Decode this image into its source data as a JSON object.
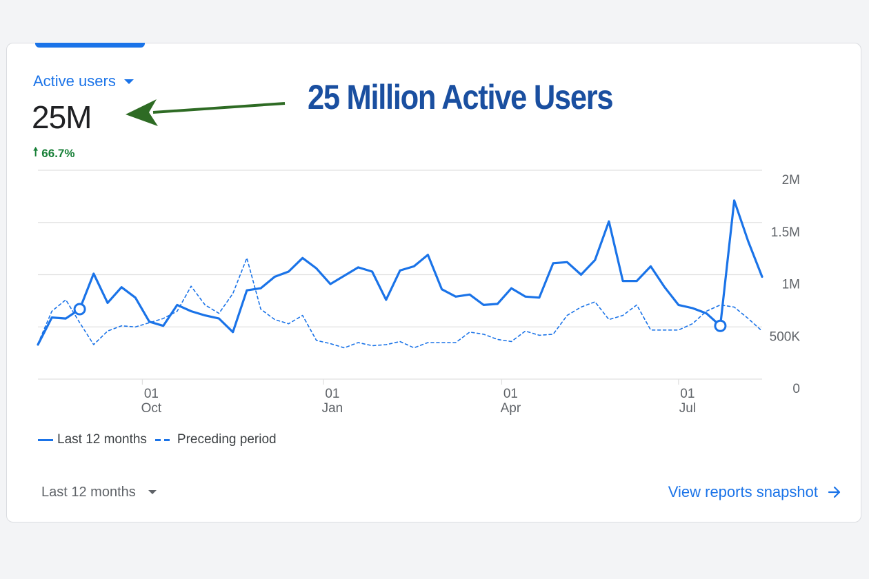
{
  "metric": {
    "selector_label": "Active users",
    "value": "25M",
    "change": "66.7%",
    "change_direction": "up"
  },
  "annotation": {
    "text": "25 Million Active Users",
    "color": "#1a4fa0",
    "arrow_color": "#2e6b24"
  },
  "legend": {
    "current_label": "Last 12 months",
    "previous_label": "Preceding period"
  },
  "footer": {
    "period_select_value": "Last 12 months",
    "view_link_label": "View reports snapshot"
  },
  "colors": {
    "accent": "#1a73e8",
    "positive": "#188038",
    "text": "#202124",
    "muted": "#5f6368",
    "grid": "#e0e0e0"
  },
  "chart_data": {
    "type": "line",
    "ylim": [
      0,
      2000000
    ],
    "y_ticks": [
      {
        "value": 0,
        "label": "0"
      },
      {
        "value": 500000,
        "label": "500K"
      },
      {
        "value": 1000000,
        "label": "1M"
      },
      {
        "value": 1500000,
        "label": "1.5M"
      },
      {
        "value": 2000000,
        "label": "2M"
      }
    ],
    "x_ticks": [
      {
        "index": 7.5,
        "day": "01",
        "month": "Oct"
      },
      {
        "index": 20.5,
        "day": "01",
        "month": "Jan"
      },
      {
        "index": 33.3,
        "day": "01",
        "month": "Apr"
      },
      {
        "index": 46,
        "day": "01",
        "month": "Jul"
      }
    ],
    "grid": true,
    "legend_position": "bottom-left",
    "series": [
      {
        "name": "Last 12 months",
        "style": "solid",
        "highlight_indices": [
          3,
          49
        ],
        "values": [
          330000,
          590000,
          580000,
          670000,
          1010000,
          730000,
          880000,
          780000,
          550000,
          510000,
          710000,
          650000,
          610000,
          580000,
          450000,
          850000,
          870000,
          980000,
          1030000,
          1160000,
          1060000,
          910000,
          990000,
          1070000,
          1030000,
          760000,
          1040000,
          1080000,
          1190000,
          860000,
          790000,
          810000,
          710000,
          720000,
          870000,
          790000,
          780000,
          1110000,
          1120000,
          1000000,
          1140000,
          1510000,
          940000,
          940000,
          1080000,
          880000,
          710000,
          680000,
          630000,
          510000,
          1710000,
          1320000,
          980000
        ]
      },
      {
        "name": "Preceding period",
        "style": "dashed",
        "values": [
          340000,
          650000,
          760000,
          540000,
          330000,
          460000,
          510000,
          500000,
          540000,
          580000,
          650000,
          890000,
          710000,
          630000,
          820000,
          1160000,
          670000,
          570000,
          530000,
          610000,
          370000,
          340000,
          300000,
          350000,
          320000,
          330000,
          360000,
          300000,
          350000,
          350000,
          350000,
          450000,
          430000,
          380000,
          360000,
          460000,
          420000,
          430000,
          610000,
          690000,
          740000,
          570000,
          610000,
          710000,
          470000,
          470000,
          470000,
          530000,
          650000,
          710000,
          690000,
          580000,
          460000
        ]
      }
    ]
  }
}
